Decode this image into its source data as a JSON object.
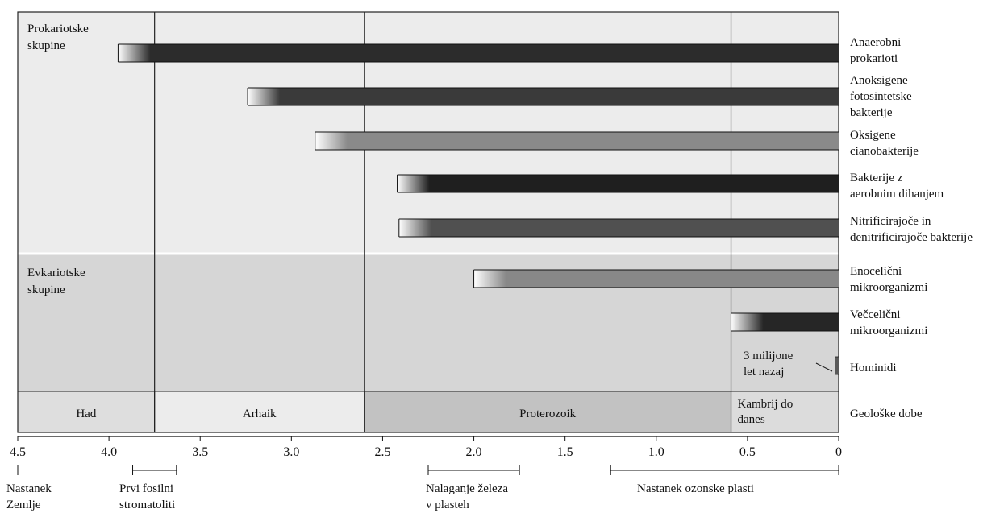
{
  "chart_data": {
    "type": "timeline",
    "axis": {
      "unit": "",
      "domain": [
        4.5,
        0
      ],
      "ticks": [
        "4.5",
        "4.0",
        "3.5",
        "3.0",
        "2.5",
        "2.0",
        "1.5",
        "1.0",
        "0.5",
        "0"
      ]
    },
    "groups": [
      {
        "id": "prokaryotes",
        "label_lines": [
          "Prokariotske",
          "skupine"
        ]
      },
      {
        "id": "eukaryotes",
        "label_lines": [
          "Evkariotske",
          "skupine"
        ]
      }
    ],
    "series": [
      {
        "label_lines": [
          "Anaerobni",
          "prokarioti"
        ],
        "start": 3.95,
        "end": 0,
        "color": "#2c2c2c",
        "group": "prokaryotes"
      },
      {
        "label_lines": [
          "Anoksigene",
          "fotosintetske",
          "bakterije"
        ],
        "start": 3.24,
        "end": 0,
        "color": "#3a3a3a",
        "group": "prokaryotes"
      },
      {
        "label_lines": [
          "Oksigene",
          "cianobakterije"
        ],
        "start": 2.87,
        "end": 0,
        "color": "#8a8a8a",
        "group": "prokaryotes"
      },
      {
        "label_lines": [
          "Bakterije z",
          "aerobnim dihanjem"
        ],
        "start": 2.42,
        "end": 0,
        "color": "#1f1f1f",
        "group": "prokaryotes"
      },
      {
        "label_lines": [
          "Nitrificirajoče in",
          "denitrificirajoče bakterije"
        ],
        "start": 2.41,
        "end": 0,
        "color": "#505050",
        "group": "prokaryotes"
      },
      {
        "label_lines": [
          "Enocelični",
          "mikroorganizmi"
        ],
        "start": 2.0,
        "end": 0,
        "color": "#888888",
        "group": "eukaryotes"
      },
      {
        "label_lines": [
          "Večcelični",
          "mikroorganizmi"
        ],
        "start": 0.59,
        "end": 0,
        "color": "#262626",
        "group": "eukaryotes"
      },
      {
        "label_lines": [
          "Hominidi"
        ],
        "start": 0.02,
        "end": 0,
        "color": "#5a5a5a",
        "group": "eukaryotes"
      }
    ],
    "annotation": {
      "lines": [
        "3 milijone",
        "let nazaj"
      ]
    },
    "eras": [
      {
        "label_lines": [
          "Had"
        ],
        "start": 4.5,
        "end": 3.75,
        "color": "#dedede"
      },
      {
        "label_lines": [
          "Arhaik"
        ],
        "start": 3.75,
        "end": 2.6,
        "color": "#ececec"
      },
      {
        "label_lines": [
          "Proterozoik"
        ],
        "start": 2.6,
        "end": 0.59,
        "color": "#c2c2c2"
      },
      {
        "label_lines": [
          "Kambrij do",
          "danes"
        ],
        "start": 0.59,
        "end": 0,
        "color": "#dcdcdc"
      }
    ],
    "eras_label": "Geološke dobe",
    "events": [
      {
        "label_lines": [
          "Nastanek",
          "Zemlje"
        ],
        "start": 4.5,
        "end": 4.5
      },
      {
        "label_lines": [
          "Prvi fosilni",
          "stromatoliti"
        ],
        "start": 3.87,
        "end": 3.63
      },
      {
        "label_lines": [
          "Nalaganje železa",
          "v plasteh"
        ],
        "start": 2.25,
        "end": 1.75
      },
      {
        "label_lines": [
          "Nastanek ozonske plasti"
        ],
        "start": 1.25,
        "end": 0
      }
    ]
  }
}
